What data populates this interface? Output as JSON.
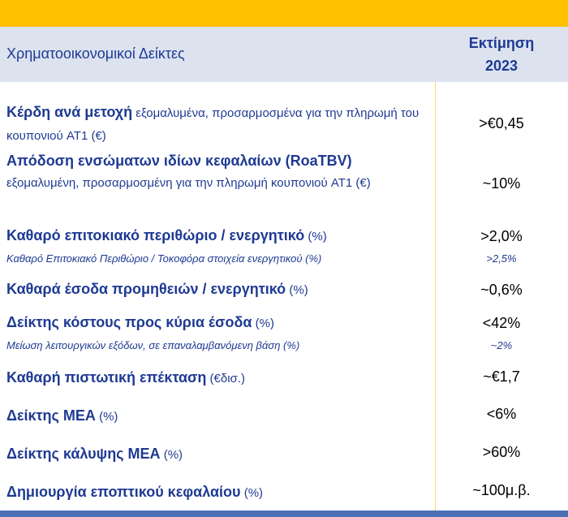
{
  "header": {
    "left": "Χρηματοοικονομικοί Δείκτες",
    "right_line1": "Εκτίμηση",
    "right_line2": "2023"
  },
  "rows": [
    {
      "main": "Κέρδη ανά μετοχή",
      "desc": " εξομαλυμένα, προσαρμοσμένα για την πληρωμή του κουπονιού AT1 (€)",
      "value": ">€0,45"
    },
    {
      "main": "Απόδοση ενσώματων ιδίων κεφαλαίων (RoaTBV)",
      "desc": "εξομαλυμένη, προσαρμοσμένη για την πληρωμή κουπονιού AT1 (€)",
      "value": "~10%"
    },
    {
      "main": "Καθαρό επιτοκιακό περιθώριο / ενεργητικό",
      "unit": " (%)",
      "value": ">2,0%",
      "sub": "Καθαρό Επιτοκιακό Περιθώριο / Τοκοφόρα στοιχεία ενεργητικού (%)",
      "sub_value": ">2,5%"
    },
    {
      "main": "Καθαρά έσοδα προμηθειών / ενεργητικό",
      "unit": " (%)",
      "value": "~0,6%"
    },
    {
      "main": "Δείκτης κόστους προς κύρια έσοδα",
      "unit": " (%)",
      "value": "<42%",
      "sub": "Μείωση λειτουργικών εξόδων, σε επαναλαμβανόμενη βάση (%)",
      "sub_value": "~2%"
    },
    {
      "main": "Καθαρή πιστωτική επέκταση",
      "unit": " (€δισ.)",
      "value": "~€1,7"
    },
    {
      "main": "Δείκτης ΜΕΑ",
      "unit": " (%)",
      "value": "<6%"
    },
    {
      "main": "Δείκτης κάλυψης ΜΕΑ",
      "unit": " (%)",
      "value": ">60%"
    },
    {
      "main": "Δημιουργία εποπτικού κεφαλαίου",
      "unit": " (%)",
      "value": "~100μ.β."
    }
  ]
}
